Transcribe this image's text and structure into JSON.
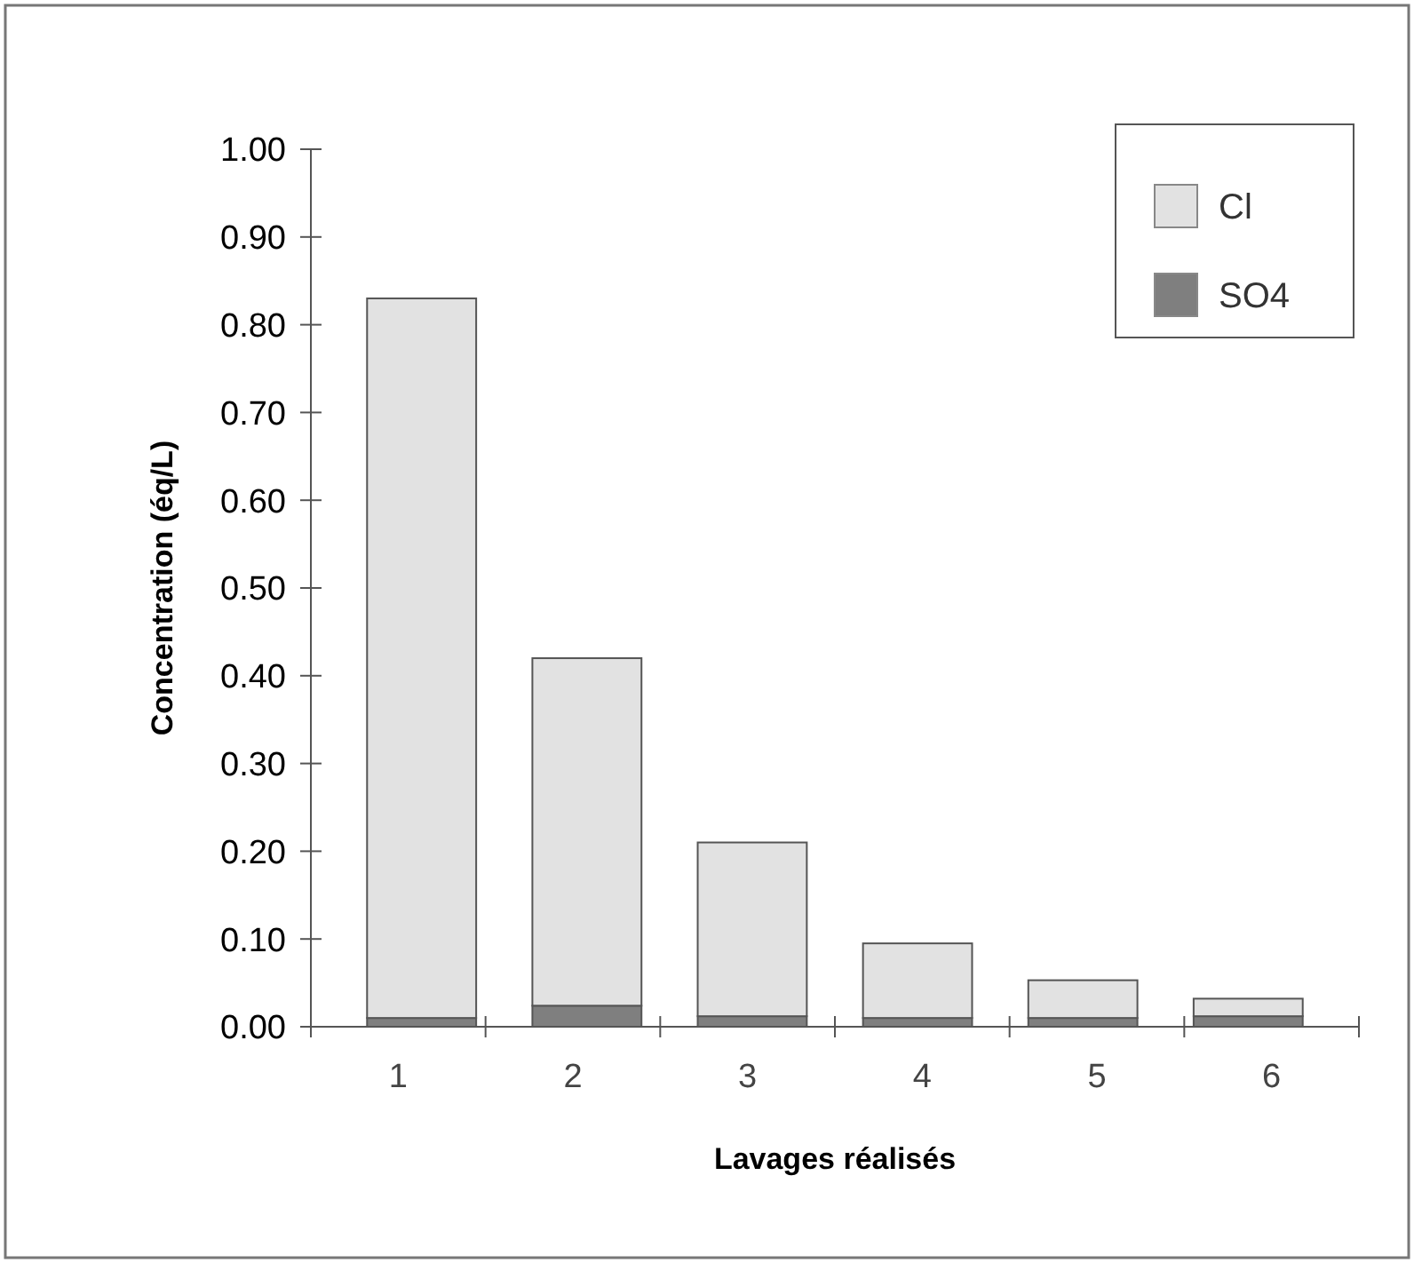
{
  "chart_data": {
    "type": "bar",
    "stacked": true,
    "xlabel": "Lavages réalisés",
    "ylabel": "Concentration (éq/L)",
    "categories": [
      "1",
      "2",
      "3",
      "4",
      "5",
      "6"
    ],
    "series": [
      {
        "name": "SO4",
        "color": "#7f7f7f",
        "values": [
          0.01,
          0.024,
          0.012,
          0.01,
          0.01,
          0.012
        ]
      },
      {
        "name": "Cl",
        "color": "#e2e2e2",
        "values": [
          0.82,
          0.396,
          0.198,
          0.085,
          0.043,
          0.02
        ]
      }
    ],
    "ylim": [
      0,
      1
    ],
    "yticks": [
      {
        "value": 0,
        "label": "0.00"
      },
      {
        "value": 0.1,
        "label": "0.10"
      },
      {
        "value": 0.2,
        "label": "0.20"
      },
      {
        "value": 0.3,
        "label": "0.30"
      },
      {
        "value": 0.4,
        "label": "0.40"
      },
      {
        "value": 0.5,
        "label": "0.50"
      },
      {
        "value": 0.6,
        "label": "0.60"
      },
      {
        "value": 0.7,
        "label": "0.70"
      },
      {
        "value": 0.8,
        "label": "0.80"
      },
      {
        "value": 0.9,
        "label": "0.90"
      },
      {
        "value": 1,
        "label": "1.00"
      }
    ],
    "legend": "top right"
  }
}
